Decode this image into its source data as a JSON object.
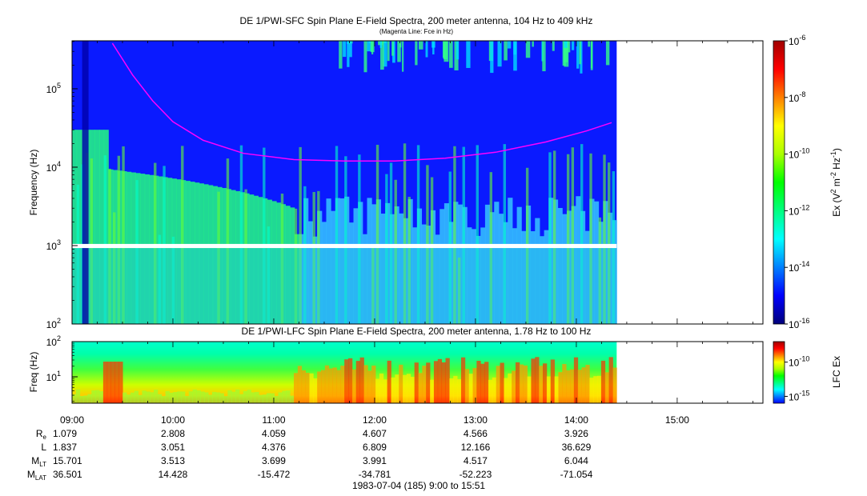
{
  "chart_data": [
    {
      "type": "heatmap",
      "title": "DE 1/PWI-SFC  Spin Plane E-Field Spectra, 200 meter antenna, 104 Hz to 409 kHz",
      "subtitle": "(Magenta Line: Fce in Hz)",
      "ylabel": "Frequency (Hz)",
      "yscale": "log",
      "ylim": [
        100,
        409000
      ],
      "y_ticks": [
        {
          "value": 100,
          "base": "10",
          "exp": "2"
        },
        {
          "value": 1000,
          "base": "10",
          "exp": "3"
        },
        {
          "value": 10000,
          "base": "10",
          "exp": "4"
        },
        {
          "value": 100000,
          "base": "10",
          "exp": "5"
        }
      ],
      "x_hours": [
        9.0,
        15.85
      ],
      "data_end_hour": 14.4,
      "gap_band_hz": [
        930,
        1050
      ],
      "colorbar": {
        "label": "Ex (V2 m-2 Hz-1)",
        "scale": "log",
        "range": [
          1e-16,
          1e-06
        ],
        "ticks": [
          {
            "value": 1e-16,
            "base": "10",
            "exp": "-16"
          },
          {
            "value": 1e-14,
            "base": "10",
            "exp": "-14"
          },
          {
            "value": 1e-12,
            "base": "10",
            "exp": "-12"
          },
          {
            "value": 1e-10,
            "base": "10",
            "exp": "-10"
          },
          {
            "value": 1e-08,
            "base": "10",
            "exp": "-8"
          },
          {
            "value": 1e-06,
            "base": "10",
            "exp": "-6"
          }
        ],
        "colors": [
          "#00007a",
          "#0000ff",
          "#0080ff",
          "#00ffff",
          "#00ff80",
          "#00ff00",
          "#aaff00",
          "#ffff00",
          "#ff8000",
          "#ff0000",
          "#a00000"
        ]
      },
      "fce_line": {
        "name": "Fce",
        "color": "#ff00ff",
        "points": [
          [
            9.4,
            380000
          ],
          [
            9.6,
            150000
          ],
          [
            9.8,
            70000
          ],
          [
            10.0,
            38000
          ],
          [
            10.3,
            22000
          ],
          [
            10.7,
            15000
          ],
          [
            11.2,
            12500
          ],
          [
            11.7,
            12000
          ],
          [
            12.2,
            12000
          ],
          [
            12.7,
            13000
          ],
          [
            13.2,
            15500
          ],
          [
            13.7,
            21000
          ],
          [
            14.1,
            29000
          ],
          [
            14.35,
            37000
          ]
        ]
      }
    },
    {
      "type": "heatmap",
      "title": "DE 1/PWI-LFC  Spin Plane E-Field Spectra, 200 meter antenna, 1.78 Hz to 100 Hz",
      "ylabel": "Freq (Hz)",
      "yscale": "log",
      "ylim": [
        1.78,
        100
      ],
      "y_ticks": [
        {
          "value": 10,
          "base": "10",
          "exp": "1"
        },
        {
          "value": 100,
          "base": "10",
          "exp": "2"
        }
      ],
      "x_hours": [
        9.0,
        15.85
      ],
      "data_end_hour": 14.4,
      "colorbar": {
        "label": "LFC Ex",
        "scale": "log",
        "range": [
          1e-16,
          1e-07
        ],
        "ticks": [
          {
            "value": 1e-15,
            "base": "10",
            "exp": "-15"
          },
          {
            "value": 1e-10,
            "base": "10",
            "exp": "-10"
          }
        ],
        "colors": [
          "#0000ff",
          "#0080ff",
          "#00ffff",
          "#00ff80",
          "#00ff00",
          "#aaff00",
          "#ffff00",
          "#ff8000",
          "#ff0000",
          "#a00000"
        ]
      }
    }
  ],
  "x_axis": {
    "tick_labels": [
      "09:00",
      "10:00",
      "11:00",
      "12:00",
      "13:00",
      "14:00",
      "15:00"
    ],
    "tick_hours": [
      9,
      10,
      11,
      12,
      13,
      14,
      15
    ],
    "ephemeris": [
      {
        "name": "R",
        "sub": "e",
        "values": [
          "1.079",
          "2.808",
          "4.059",
          "4.607",
          "4.566",
          "3.926"
        ]
      },
      {
        "name": "L",
        "sub": "",
        "values": [
          "1.837",
          "3.051",
          "4.376",
          "6.809",
          "12.166",
          "36.629"
        ]
      },
      {
        "name": "M",
        "sub": "LT",
        "values": [
          "15.701",
          "3.513",
          "3.699",
          "3.991",
          "4.517",
          "6.044"
        ]
      },
      {
        "name": "M",
        "sub": "LAT",
        "values": [
          "36.501",
          "14.428",
          "-15.472",
          "-34.781",
          "-52.223",
          "-71.054"
        ]
      }
    ],
    "date_label": "1983-07-04 (185) 9:00 to 15:51"
  }
}
